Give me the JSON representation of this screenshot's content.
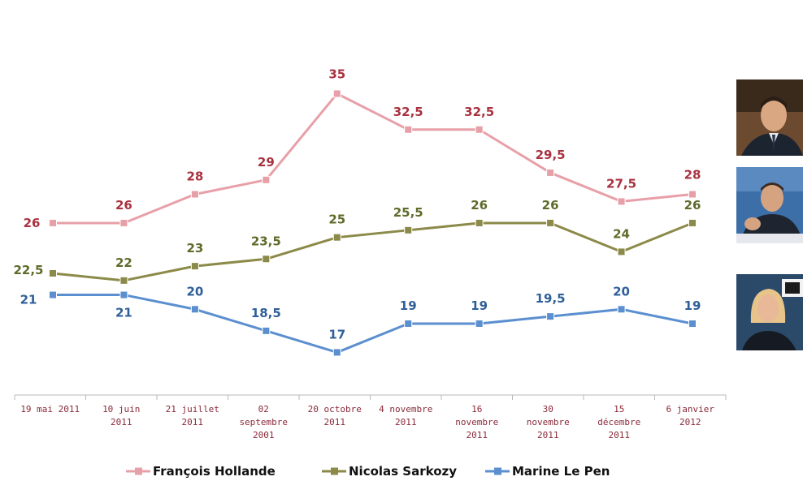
{
  "chart_data": {
    "type": "line",
    "categories": [
      [
        "19 mai 2011"
      ],
      [
        "10 juin",
        "2011"
      ],
      [
        "21 juillet",
        "2011"
      ],
      [
        "02",
        "septembre",
        "2001"
      ],
      [
        "20 octobre",
        "2011"
      ],
      [
        "4 novembre",
        "2011"
      ],
      [
        "16",
        "novembre",
        "2011"
      ],
      [
        "30",
        "novembre",
        "2011"
      ],
      [
        "15",
        "décembre",
        "2011"
      ],
      [
        "6 janvier",
        "2012"
      ]
    ],
    "series": [
      {
        "name": "François Hollande",
        "color": "#e8a0a8",
        "label_color": "#a83240",
        "values": [
          26,
          26,
          28,
          29,
          35,
          32.5,
          32.5,
          29.5,
          27.5,
          28
        ],
        "labels": [
          "26",
          "26",
          "28",
          "29",
          "35",
          "32,5",
          "32,5",
          "29,5",
          "27,5",
          "28"
        ]
      },
      {
        "name": "Nicolas Sarkozy",
        "color": "#8c8a48",
        "label_color": "#5e6b2a",
        "values": [
          22.5,
          22,
          23,
          23.5,
          25,
          25.5,
          26,
          26,
          24,
          26
        ],
        "labels": [
          "22,5",
          "22",
          "23",
          "23,5",
          "25",
          "25,5",
          "26",
          "26",
          "24",
          "26"
        ]
      },
      {
        "name": "Marine Le Pen",
        "color": "#5b8fd0",
        "label_color": "#2f5f98",
        "values": [
          21,
          21,
          20,
          18.5,
          17,
          19,
          19,
          19.5,
          20,
          19
        ],
        "labels": [
          "21",
          "21",
          "20",
          "18,5",
          "17",
          "19",
          "19",
          "19,5",
          "20",
          "19"
        ]
      }
    ],
    "grid": false,
    "legend_position": "bottom"
  },
  "photos": [
    {
      "subject": "François Hollande",
      "icon": "portrait-hollande"
    },
    {
      "subject": "Nicolas Sarkozy",
      "icon": "portrait-sarkozy"
    },
    {
      "subject": "Marine Le Pen",
      "icon": "portrait-le-pen"
    }
  ]
}
